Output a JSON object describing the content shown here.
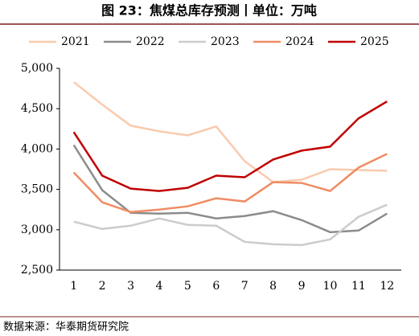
{
  "chart_data": {
    "type": "line",
    "title": "图 23：焦煤总库存预测丨单位：万吨",
    "source": "数据来源：华泰期货研究院",
    "categories": [
      "1",
      "2",
      "3",
      "4",
      "5",
      "6",
      "7",
      "8",
      "9",
      "10",
      "11",
      "12"
    ],
    "series": [
      {
        "name": "2021",
        "color": "#f8cbad",
        "values": [
          4830,
          4550,
          4290,
          4220,
          4170,
          4280,
          3850,
          3590,
          3620,
          3750,
          3740,
          3730
        ]
      },
      {
        "name": "2022",
        "color": "#8c8c8c",
        "values": [
          4050,
          3490,
          3210,
          3200,
          3210,
          3140,
          3170,
          3230,
          3120,
          2970,
          2990,
          3200
        ]
      },
      {
        "name": "2023",
        "color": "#cccccc",
        "values": [
          3100,
          3010,
          3050,
          3140,
          3060,
          3050,
          2850,
          2820,
          2810,
          2880,
          3160,
          3310
        ]
      },
      {
        "name": "2024",
        "color": "#f08c64",
        "values": [
          3710,
          3340,
          3220,
          3250,
          3290,
          3390,
          3350,
          3590,
          3580,
          3480,
          3770,
          3940
        ]
      },
      {
        "name": "2025",
        "color": "#c00000",
        "values": [
          4210,
          3670,
          3510,
          3480,
          3520,
          3670,
          3650,
          3870,
          3980,
          4030,
          4380,
          4590
        ]
      }
    ],
    "ylim": [
      2500,
      5000
    ],
    "yticks": [
      {
        "value": 2500,
        "label": "2,500"
      },
      {
        "value": 3000,
        "label": "3,000"
      },
      {
        "value": 3500,
        "label": "3,500"
      },
      {
        "value": 4000,
        "label": "4,000"
      },
      {
        "value": 4500,
        "label": "4,500"
      },
      {
        "value": 5000,
        "label": "5,000"
      }
    ],
    "legend": "top"
  }
}
